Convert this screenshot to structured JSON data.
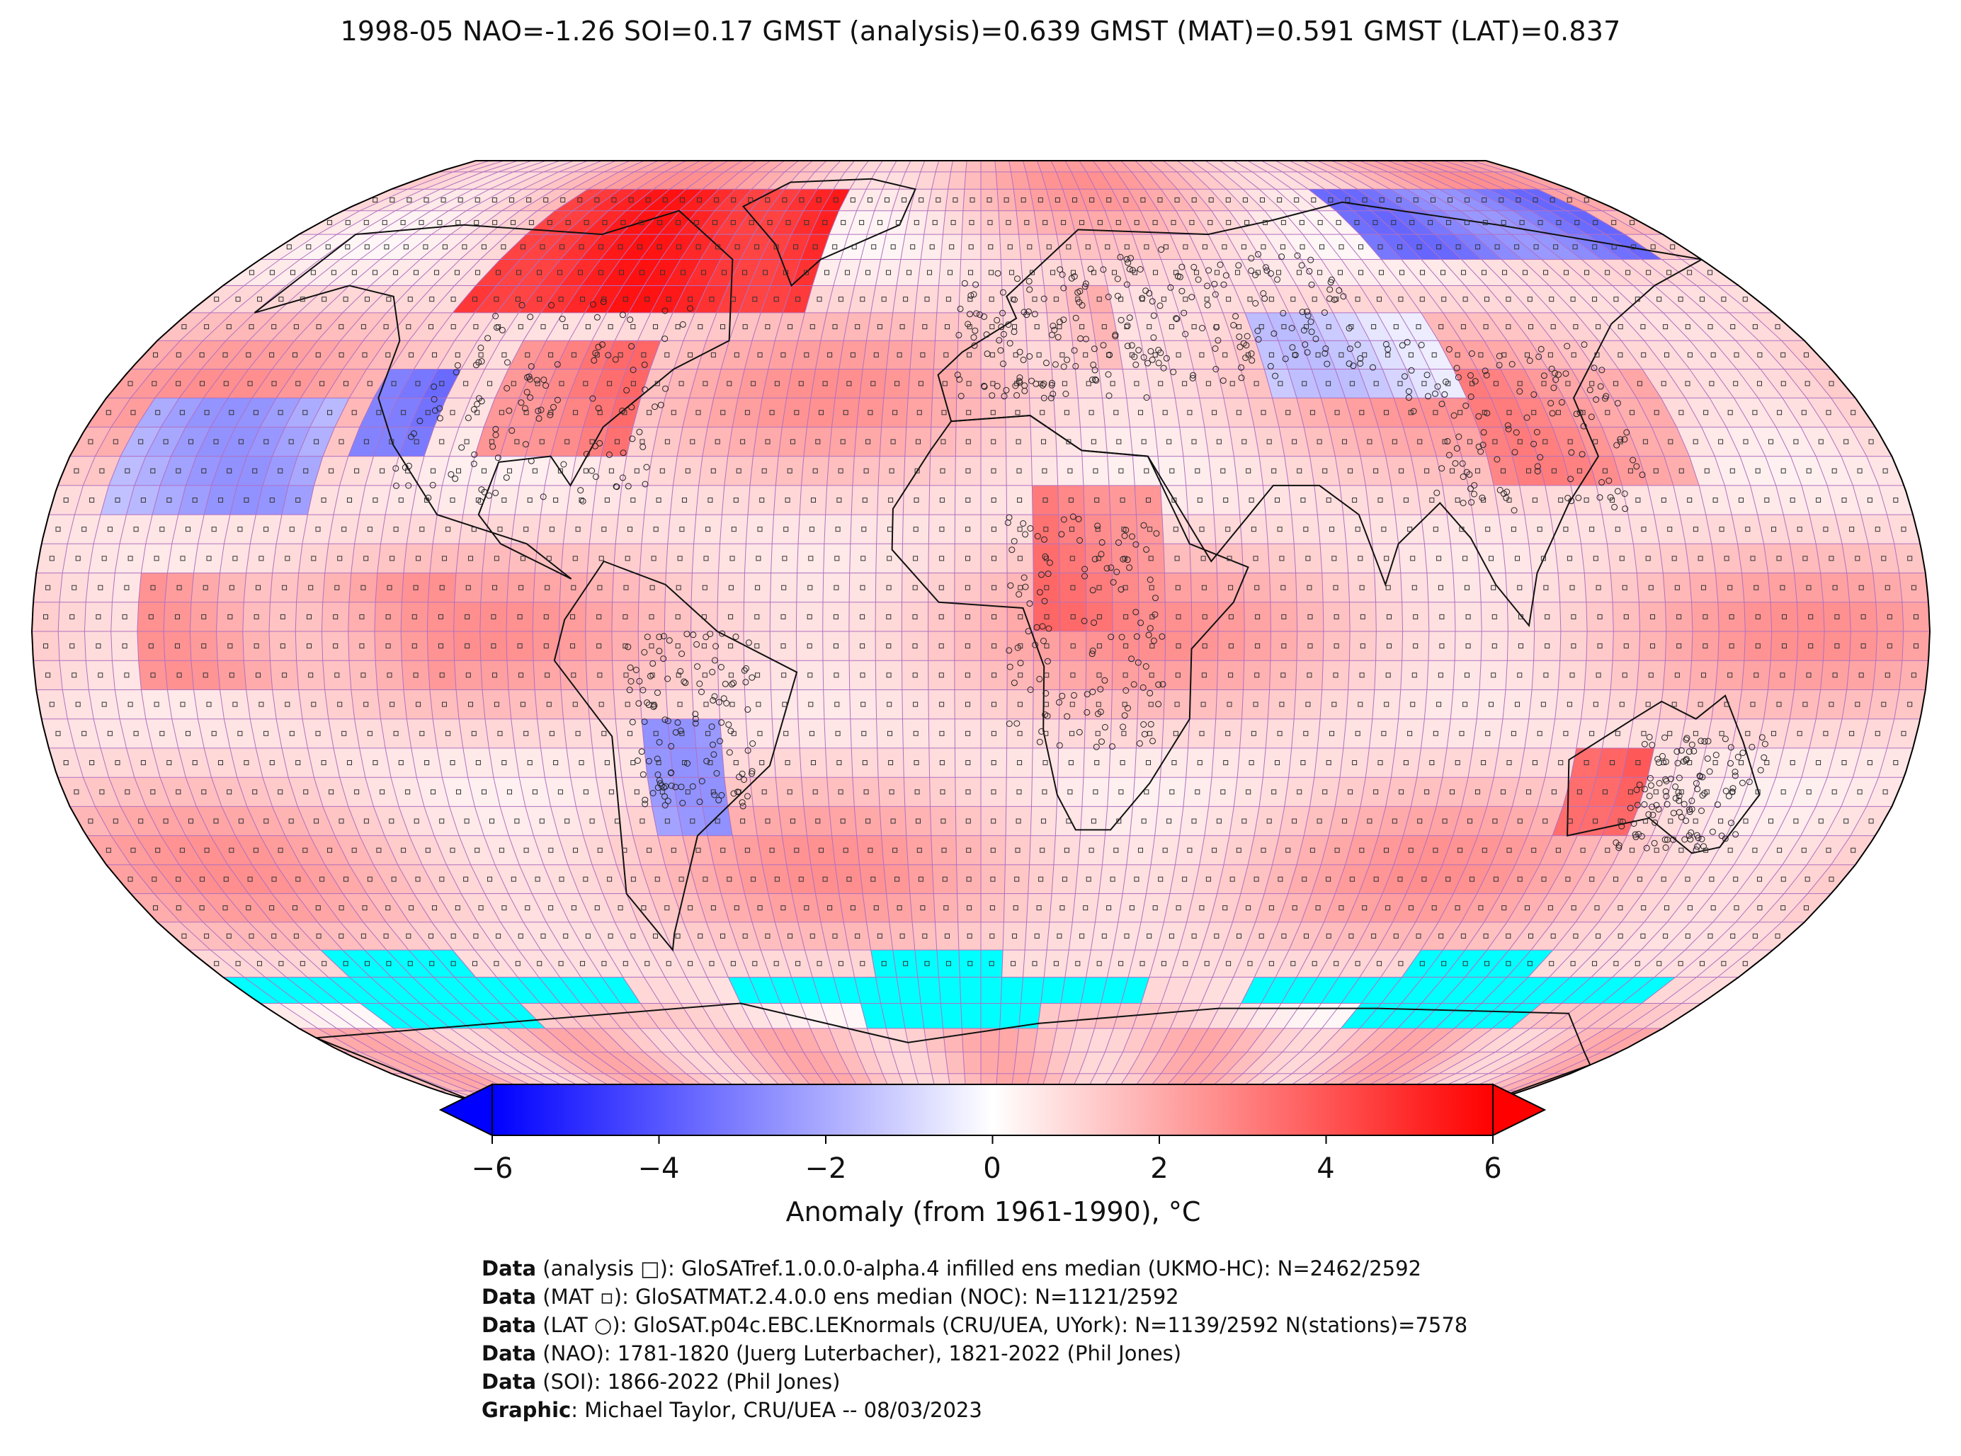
{
  "title": "1998-05 NAO=-1.26 SOI=0.17 GMST (analysis)=0.639 GMST (MAT)=0.591 GMST (LAT)=0.837",
  "colorbar": {
    "label": "Anomaly (from 1961-1990), °C",
    "ticks": [
      "−6",
      "−4",
      "−2",
      "0",
      "2",
      "4",
      "6"
    ],
    "range": [
      -6,
      6
    ],
    "colors": {
      "low": "#0000ff",
      "mid": "#ffffff",
      "high": "#ff0000",
      "missing_ice": "#00ffff"
    }
  },
  "credits": [
    {
      "key": "Data",
      "text": " (analysis □): GloSATref.1.0.0.0-alpha.4 infilled ens median (UKMO-HC): N=2462/2592"
    },
    {
      "key": "Data",
      "text": " (MAT ▫): GloSATMAT.2.4.0.0 ens median (NOC): N=1121/2592"
    },
    {
      "key": "Data",
      "text": " (LAT ○): GloSAT.p04c.EBC.LEKnormals (CRU/UEA, UYork): N=1139/2592 N(stations)=7578"
    },
    {
      "key": "Data",
      "text": " (NAO): 1781-1820 (Juerg Luterbacher), 1821-2022 (Phil Jones)"
    },
    {
      "key": "Data",
      "text": " (SOI): 1866-2022 (Phil Jones)"
    },
    {
      "key": "Graphic",
      "text": ": Michael Taylor, CRU/UEA -- 08/03/2023"
    }
  ],
  "chart_data": {
    "type": "heatmap",
    "projection": "Robinson",
    "grid_resolution_deg": 5,
    "value_units": "°C anomaly",
    "regional_anomalies": [
      {
        "region": "Northern Canada / Greenland",
        "lat": [
          55,
          80
        ],
        "lon": [
          -120,
          -40
        ],
        "value": 5.0
      },
      {
        "region": "Eastern United States",
        "lat": [
          30,
          50
        ],
        "lon": [
          -100,
          -70
        ],
        "value": 3.0
      },
      {
        "region": "Western United States",
        "lat": [
          30,
          45
        ],
        "lon": [
          -125,
          -110
        ],
        "value": -3.5
      },
      {
        "region": "North Pacific",
        "lat": [
          20,
          40
        ],
        "lon": [
          -170,
          -130
        ],
        "value": -2.0
      },
      {
        "region": "Central Pacific",
        "lat": [
          -10,
          10
        ],
        "lon": [
          -160,
          -100
        ],
        "value": 2.0
      },
      {
        "region": "Central Africa",
        "lat": [
          0,
          25
        ],
        "lon": [
          10,
          35
        ],
        "value": 3.0
      },
      {
        "region": "Europe",
        "lat": [
          45,
          60
        ],
        "lon": [
          0,
          30
        ],
        "value": 1.5
      },
      {
        "region": "Siberia",
        "lat": [
          65,
          80
        ],
        "lon": [
          100,
          170
        ],
        "value": -3.0
      },
      {
        "region": "Central Asia",
        "lat": [
          40,
          55
        ],
        "lon": [
          60,
          100
        ],
        "value": -1.0
      },
      {
        "region": "East Asia",
        "lat": [
          25,
          45
        ],
        "lon": [
          100,
          140
        ],
        "value": 2.5
      },
      {
        "region": "Southern South America",
        "lat": [
          -35,
          -15
        ],
        "lon": [
          -65,
          -50
        ],
        "value": -2.0
      },
      {
        "region": "Western Australia",
        "lat": [
          -35,
          -20
        ],
        "lon": [
          115,
          130
        ],
        "value": 4.0
      },
      {
        "region": "Antarctica",
        "lat": [
          -90,
          -70
        ],
        "lon": [
          -180,
          180
        ],
        "value": 1.5
      },
      {
        "region": "Southern Ocean sea ice (no data)",
        "lat": [
          -70,
          -55
        ],
        "lon": [
          -180,
          180
        ],
        "value": null
      }
    ],
    "stations_count": 7578
  }
}
